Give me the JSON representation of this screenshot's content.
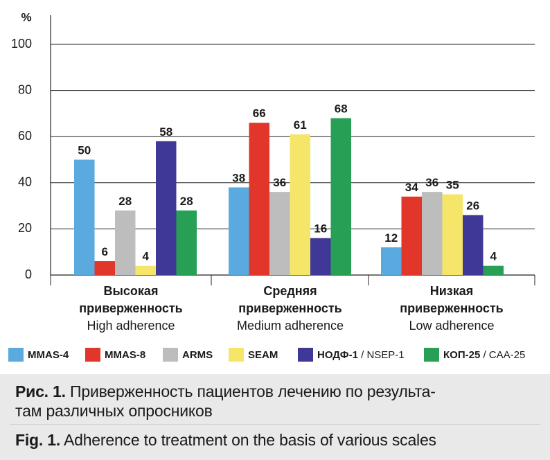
{
  "chart_data": {
    "type": "bar",
    "ylabel": "%",
    "ylim": [
      0,
      100
    ],
    "yticks": [
      0,
      20,
      40,
      60,
      80,
      100
    ],
    "grid": true,
    "categories": [
      {
        "ru_line1": "Высокая",
        "ru_line2": "приверженность",
        "en": "High adherence"
      },
      {
        "ru_line1": "Средняя",
        "ru_line2": "приверженность",
        "en": "Medium adherence"
      },
      {
        "ru_line1": "Низкая",
        "ru_line2": "приверженность",
        "en": "Low adherence"
      }
    ],
    "series": [
      {
        "name": "MMAS-4",
        "name_suffix": "",
        "color": "#5aa9df",
        "values": [
          50,
          38,
          12
        ]
      },
      {
        "name": "MMAS-8",
        "name_suffix": "",
        "color": "#e2362a",
        "values": [
          6,
          66,
          34
        ]
      },
      {
        "name": "ARMS",
        "name_suffix": "",
        "color": "#bdbdbd",
        "values": [
          28,
          36,
          36
        ]
      },
      {
        "name": "SEAM",
        "name_suffix": "",
        "color": "#f5e66a",
        "values": [
          4,
          61,
          35
        ]
      },
      {
        "name": "НОДФ-1",
        "name_suffix": " / NSEP-1",
        "color": "#3f3896",
        "values": [
          58,
          16,
          26
        ]
      },
      {
        "name": "КОП-25",
        "name_suffix": " / CAA-25",
        "color": "#27a055",
        "values": [
          28,
          68,
          4
        ]
      }
    ],
    "legend_position": "bottom"
  },
  "caption": {
    "ru_label": "Рис. 1.",
    "ru_text_1": " Приверженность пациентов лечению по результа-",
    "ru_text_2": "там различных опросников",
    "en_label": "Fig. 1.",
    "en_text": " Adherence to treatment on the basis of various scales"
  }
}
